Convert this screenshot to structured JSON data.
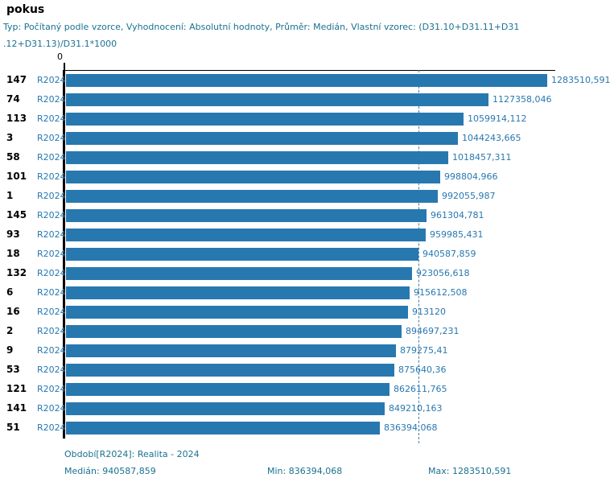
{
  "header": {
    "title": "pokus",
    "subtitle": "Typ: Počítaný podle vzorce, Vyhodnocení: Absolutní hodnoty, Průměr: Medián, Vlastní vzorec: (D31.10+D31.11+D31\n.12+D31.13)/D31.1*1000"
  },
  "chart_data": {
    "type": "bar",
    "orientation": "horizontal",
    "title": "pokus",
    "series_label": "R2024",
    "categories": [
      "147",
      "74",
      "113",
      "3",
      "58",
      "101",
      "1",
      "145",
      "93",
      "18",
      "132",
      "6",
      "16",
      "2",
      "9",
      "53",
      "121",
      "141",
      "51"
    ],
    "values": [
      1283510.591,
      1127358.046,
      1059914.112,
      1044243.665,
      1018457.311,
      998804.966,
      992055.987,
      961304.781,
      959985.431,
      940587.859,
      923056.618,
      915612.508,
      913120,
      894697.231,
      879275.41,
      875640.36,
      862611.765,
      849210.163,
      836394.068
    ],
    "value_labels": [
      "1283510,591",
      "1127358,046",
      "1059914,112",
      "1044243,665",
      "1018457,311",
      "998804,966",
      "992055,987",
      "961304,781",
      "959985,431",
      "940587,859",
      "923056,618",
      "915612,508",
      "913120",
      "894697,231",
      "879275,41",
      "875640,36",
      "862611,765",
      "849210,163",
      "836394,068"
    ],
    "xlim": [
      0,
      1283510.591
    ],
    "x_tick_labels": [
      "0"
    ],
    "median_value": 940587.859,
    "median_line_style": "dashed",
    "grid": false,
    "legend_position": "none",
    "bar_color": "#2878b0",
    "label_color": "#2878b0",
    "median_line_color": "#4a7fa5"
  },
  "footer": {
    "period_label": "Období[R2024]: Realita - 2024",
    "median_label": "Medián: 940587,859",
    "min_label": "Min: 836394,068",
    "max_label": "Max: 1283510,591"
  },
  "colors": {
    "accent_blue": "#2878b0",
    "teal_text": "#1a7190",
    "axis_black": "#000000"
  }
}
